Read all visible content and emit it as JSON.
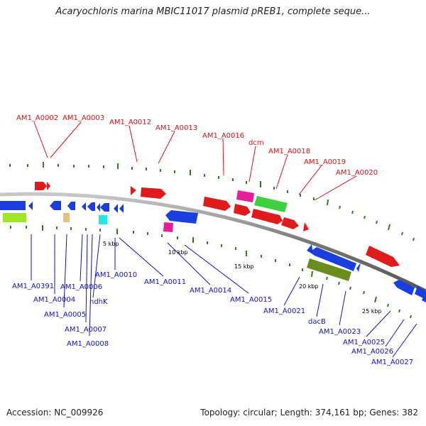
{
  "title": "Acaryochloris marina MBIC11017 plasmid pREB1, complete seque...",
  "footer": {
    "accession": "Accession: NC_009926",
    "summary": "Topology: circular; Length: 374,161 bp; Genes: 382"
  },
  "colors": {
    "forward_label": "#dd1111",
    "reverse_label": "#1111cc",
    "backbone": "#8a8a8a",
    "tick": "#2e7d1e"
  },
  "scale_ticks": [
    "5 kbp",
    "10 kbp",
    "15 kbp",
    "20 kbp",
    "25 kbp"
  ],
  "forward_genes": [
    "AM1_A0002",
    "AM1_A0003",
    "AM1_A0012",
    "AM1_A0013",
    "AM1_A0016",
    "dcm",
    "AM1_A0018",
    "AM1_A0019",
    "AM1_A0020"
  ],
  "reverse_genes": [
    "AM1_A0391",
    "AM1_A0004",
    "AM1_A0006",
    "AM1_A0005",
    "ndhK",
    "AM1_A0007",
    "AM1_A0008",
    "AM1_A0010",
    "AM1_A0011",
    "AM1_A0014",
    "AM1_A0015",
    "AM1_A0021",
    "dacB",
    "AM1_A0023",
    "AM1_A0025",
    "AM1_A0026",
    "AM1_A0027"
  ]
}
